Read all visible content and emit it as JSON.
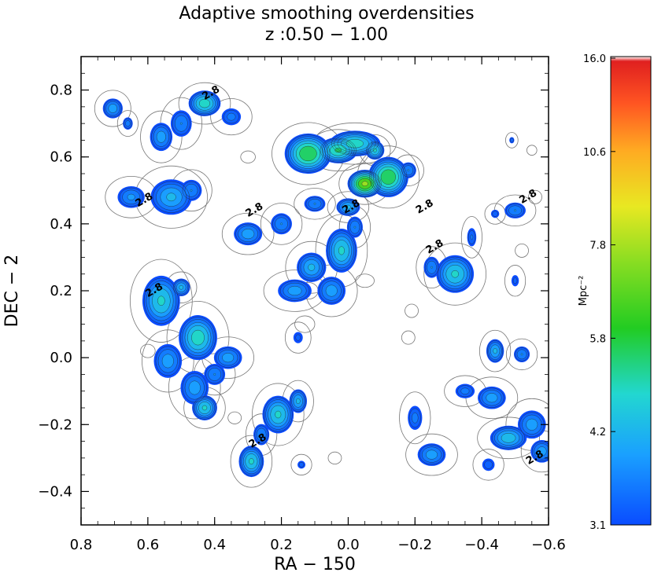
{
  "chart_data": {
    "type": "heatmap",
    "title": "Adaptive smoothing overdensities",
    "subtitle": "z :0.50 − 1.00",
    "xlabel": "RA − 150",
    "ylabel": "DEC − 2",
    "xlim": [
      0.8,
      -0.6
    ],
    "ylim": [
      -0.5,
      0.9
    ],
    "x_ticks": [
      "0.8",
      "0.6",
      "0.4",
      "0.2",
      "0.0",
      "−0.2",
      "−0.4",
      "−0.6"
    ],
    "y_ticks": [
      "−0.4",
      "−0.2",
      "0.0",
      "0.2",
      "0.4",
      "0.6",
      "0.8"
    ],
    "x_tick_values": [
      0.8,
      0.6,
      0.4,
      0.2,
      0.0,
      -0.2,
      -0.4,
      -0.6
    ],
    "y_tick_values": [
      -0.4,
      -0.2,
      0.0,
      0.2,
      0.4,
      0.6,
      0.8
    ],
    "contour_label": "2.8",
    "contour_label_positions": [
      {
        "ra": 0.43,
        "dec": 0.77
      },
      {
        "ra": 0.63,
        "dec": 0.45
      },
      {
        "ra": 0.3,
        "dec": 0.42
      },
      {
        "ra": 0.01,
        "dec": 0.43
      },
      {
        "ra": -0.21,
        "dec": 0.43
      },
      {
        "ra": -0.24,
        "dec": 0.31
      },
      {
        "ra": -0.52,
        "dec": 0.46
      },
      {
        "ra": 0.6,
        "dec": 0.18
      },
      {
        "ra": 0.29,
        "dec": -0.27
      },
      {
        "ra": -0.54,
        "dec": -0.32
      }
    ],
    "colorbar": {
      "label": "Mpc⁻²",
      "ticks": [
        "16.0",
        "10.6",
        "7.8",
        "5.8",
        "4.2",
        "3.1"
      ],
      "tick_values": [
        16.0,
        10.6,
        7.8,
        5.8,
        4.2,
        3.1
      ],
      "range": [
        3.1,
        16.0
      ]
    },
    "clumps": [
      {
        "ra": 0.705,
        "dec": 0.745,
        "rra": 0.035,
        "rdec": 0.035,
        "peak": 5.6
      },
      {
        "ra": 0.66,
        "dec": 0.7,
        "rra": 0.02,
        "rdec": 0.025,
        "peak": 4.6
      },
      {
        "ra": 0.56,
        "dec": 0.66,
        "rra": 0.04,
        "rdec": 0.05,
        "peak": 5.5
      },
      {
        "ra": 0.5,
        "dec": 0.7,
        "rra": 0.04,
        "rdec": 0.05,
        "peak": 5.0
      },
      {
        "ra": 0.43,
        "dec": 0.76,
        "rra": 0.05,
        "rdec": 0.04,
        "peak": 7.5
      },
      {
        "ra": 0.35,
        "dec": 0.72,
        "rra": 0.04,
        "rdec": 0.035,
        "peak": 4.5
      },
      {
        "ra": 0.53,
        "dec": 0.48,
        "rra": 0.07,
        "rdec": 0.06,
        "peak": 6.0
      },
      {
        "ra": 0.47,
        "dec": 0.5,
        "rra": 0.04,
        "rdec": 0.04,
        "peak": 5.0
      },
      {
        "ra": 0.65,
        "dec": 0.48,
        "rra": 0.05,
        "rdec": 0.04,
        "peak": 5.2
      },
      {
        "ra": 0.3,
        "dec": 0.37,
        "rra": 0.05,
        "rdec": 0.04,
        "peak": 5.6
      },
      {
        "ra": 0.2,
        "dec": 0.4,
        "rra": 0.04,
        "rdec": 0.04,
        "peak": 5.0
      },
      {
        "ra": 0.03,
        "dec": 0.62,
        "rra": 0.06,
        "rdec": 0.04,
        "peak": 8.0
      },
      {
        "ra": -0.05,
        "dec": 0.52,
        "rra": 0.05,
        "rdec": 0.04,
        "peak": 11.0
      },
      {
        "ra": 0.12,
        "dec": 0.61,
        "rra": 0.07,
        "rdec": 0.06,
        "peak": 9.0
      },
      {
        "ra": -0.12,
        "dec": 0.54,
        "rra": 0.06,
        "rdec": 0.06,
        "peak": 9.0
      },
      {
        "ra": -0.02,
        "dec": 0.64,
        "rra": 0.08,
        "rdec": 0.04,
        "peak": 7.5
      },
      {
        "ra": 0.1,
        "dec": 0.46,
        "rra": 0.04,
        "rdec": 0.03,
        "peak": 5.0
      },
      {
        "ra": -0.08,
        "dec": 0.62,
        "rra": 0.03,
        "rdec": 0.03,
        "peak": 7.0
      },
      {
        "ra": -0.18,
        "dec": 0.56,
        "rra": 0.03,
        "rdec": 0.03,
        "peak": 5.0
      },
      {
        "ra": 0.0,
        "dec": 0.45,
        "rra": 0.04,
        "rdec": 0.03,
        "peak": 6.0
      },
      {
        "ra": 0.02,
        "dec": 0.32,
        "rra": 0.05,
        "rdec": 0.07,
        "peak": 7.0
      },
      {
        "ra": 0.11,
        "dec": 0.27,
        "rra": 0.05,
        "rdec": 0.05,
        "peak": 6.0
      },
      {
        "ra": 0.16,
        "dec": 0.2,
        "rra": 0.06,
        "rdec": 0.04,
        "peak": 5.5
      },
      {
        "ra": 0.05,
        "dec": 0.2,
        "rra": 0.05,
        "rdec": 0.05,
        "peak": 5.5
      },
      {
        "ra": -0.02,
        "dec": 0.39,
        "rra": 0.03,
        "rdec": 0.04,
        "peak": 5.0
      },
      {
        "ra": 0.15,
        "dec": 0.06,
        "rra": 0.025,
        "rdec": 0.03,
        "peak": 3.8
      },
      {
        "ra": 0.56,
        "dec": 0.17,
        "rra": 0.06,
        "rdec": 0.08,
        "peak": 7.0
      },
      {
        "ra": 0.5,
        "dec": 0.21,
        "rra": 0.03,
        "rdec": 0.03,
        "peak": 6.0
      },
      {
        "ra": 0.45,
        "dec": 0.06,
        "rra": 0.06,
        "rdec": 0.07,
        "peak": 7.5
      },
      {
        "ra": 0.54,
        "dec": -0.01,
        "rra": 0.05,
        "rdec": 0.06,
        "peak": 5.5
      },
      {
        "ra": 0.36,
        "dec": 0.0,
        "rra": 0.05,
        "rdec": 0.04,
        "peak": 5.5
      },
      {
        "ra": 0.46,
        "dec": -0.09,
        "rra": 0.05,
        "rdec": 0.06,
        "peak": 5.5
      },
      {
        "ra": 0.43,
        "dec": -0.15,
        "rra": 0.04,
        "rdec": 0.04,
        "peak": 7.0
      },
      {
        "ra": 0.4,
        "dec": -0.05,
        "rra": 0.04,
        "rdec": 0.04,
        "peak": 5.0
      },
      {
        "ra": 0.21,
        "dec": -0.17,
        "rra": 0.05,
        "rdec": 0.06,
        "peak": 7.0
      },
      {
        "ra": 0.15,
        "dec": -0.13,
        "rra": 0.03,
        "rdec": 0.04,
        "peak": 6.0
      },
      {
        "ra": 0.29,
        "dec": -0.31,
        "rra": 0.04,
        "rdec": 0.05,
        "peak": 7.0
      },
      {
        "ra": 0.26,
        "dec": -0.23,
        "rra": 0.03,
        "rdec": 0.04,
        "peak": 5.0
      },
      {
        "ra": 0.14,
        "dec": -0.32,
        "rra": 0.02,
        "rdec": 0.02,
        "peak": 3.9
      },
      {
        "ra": -0.32,
        "dec": 0.25,
        "rra": 0.06,
        "rdec": 0.06,
        "peak": 7.0
      },
      {
        "ra": -0.25,
        "dec": 0.27,
        "rra": 0.03,
        "rdec": 0.04,
        "peak": 5.0
      },
      {
        "ra": -0.37,
        "dec": 0.36,
        "rra": 0.02,
        "rdec": 0.04,
        "peak": 4.3
      },
      {
        "ra": -0.5,
        "dec": 0.44,
        "rra": 0.04,
        "rdec": 0.03,
        "peak": 5.0
      },
      {
        "ra": -0.44,
        "dec": 0.43,
        "rra": 0.02,
        "rdec": 0.02,
        "peak": 4.0
      },
      {
        "ra": -0.49,
        "dec": 0.65,
        "rra": 0.012,
        "rdec": 0.015,
        "peak": 4.0
      },
      {
        "ra": -0.5,
        "dec": 0.23,
        "rra": 0.02,
        "rdec": 0.03,
        "peak": 3.8
      },
      {
        "ra": -0.44,
        "dec": 0.02,
        "rra": 0.03,
        "rdec": 0.04,
        "peak": 6.0
      },
      {
        "ra": -0.52,
        "dec": 0.01,
        "rra": 0.03,
        "rdec": 0.03,
        "peak": 5.0
      },
      {
        "ra": -0.43,
        "dec": -0.12,
        "rra": 0.05,
        "rdec": 0.04,
        "peak": 5.5
      },
      {
        "ra": -0.35,
        "dec": -0.1,
        "rra": 0.04,
        "rdec": 0.03,
        "peak": 4.5
      },
      {
        "ra": -0.48,
        "dec": -0.24,
        "rra": 0.06,
        "rdec": 0.04,
        "peak": 6.5
      },
      {
        "ra": -0.55,
        "dec": -0.2,
        "rra": 0.05,
        "rdec": 0.05,
        "peak": 5.5
      },
      {
        "ra": -0.58,
        "dec": -0.28,
        "rra": 0.04,
        "rdec": 0.04,
        "peak": 5.5
      },
      {
        "ra": -0.25,
        "dec": -0.29,
        "rra": 0.05,
        "rdec": 0.04,
        "peak": 5.5
      },
      {
        "ra": -0.2,
        "dec": -0.18,
        "rra": 0.03,
        "rdec": 0.05,
        "peak": 4.5
      },
      {
        "ra": -0.42,
        "dec": -0.32,
        "rra": 0.03,
        "rdec": 0.03,
        "peak": 4.0
      }
    ],
    "outline_blobs": [
      {
        "ra": 0.3,
        "dec": 0.6,
        "rra": 0.022,
        "rdec": 0.018
      },
      {
        "ra": 0.12,
        "dec": 0.2,
        "rra": 0.03,
        "rdec": 0.025
      },
      {
        "ra": -0.05,
        "dec": 0.23,
        "rra": 0.028,
        "rdec": 0.02
      },
      {
        "ra": 0.13,
        "dec": 0.1,
        "rra": 0.03,
        "rdec": 0.025
      },
      {
        "ra": -0.18,
        "dec": 0.06,
        "rra": 0.02,
        "rdec": 0.02
      },
      {
        "ra": -0.55,
        "dec": 0.62,
        "rra": 0.015,
        "rdec": 0.015
      },
      {
        "ra": -0.56,
        "dec": 0.48,
        "rra": 0.02,
        "rdec": 0.02
      },
      {
        "ra": -0.52,
        "dec": 0.32,
        "rra": 0.02,
        "rdec": 0.02
      },
      {
        "ra": 0.6,
        "dec": 0.02,
        "rra": 0.022,
        "rdec": 0.02
      },
      {
        "ra": 0.34,
        "dec": -0.18,
        "rra": 0.02,
        "rdec": 0.018
      },
      {
        "ra": 0.04,
        "dec": -0.3,
        "rra": 0.02,
        "rdec": 0.018
      },
      {
        "ra": -0.19,
        "dec": 0.14,
        "rra": 0.02,
        "rdec": 0.02
      }
    ]
  }
}
